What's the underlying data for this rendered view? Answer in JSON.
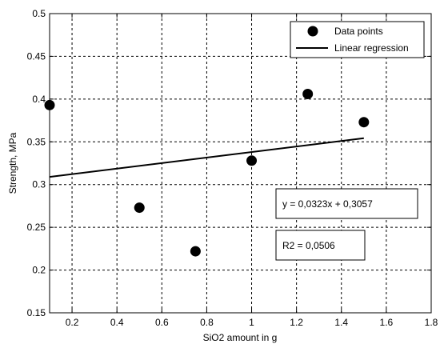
{
  "chart_data": {
    "type": "scatter",
    "xlabel": "SiO2 amount in g",
    "ylabel": "Strength, MPa",
    "xlim": [
      0.1,
      1.8
    ],
    "ylim": [
      0.15,
      0.5
    ],
    "xticks": [
      0.2,
      0.4,
      0.6,
      0.8,
      1,
      1.2,
      1.4,
      1.6,
      1.8
    ],
    "yticks": [
      0.15,
      0.2,
      0.25,
      0.3,
      0.35,
      0.4,
      0.45,
      0.5
    ],
    "xtick_labels": [
      "0.2",
      "0.4",
      "0.6",
      "0.8",
      "1",
      "1.2",
      "1.4",
      "1.6",
      "1.8"
    ],
    "ytick_labels": [
      "0.15",
      "0.2",
      "0.25",
      "0.3",
      "0.35",
      "0.4",
      "0.45",
      "0.5"
    ],
    "grid": true,
    "legend_position": "top-right",
    "series": [
      {
        "name": "Data points",
        "kind": "scatter",
        "color": "#000000",
        "x": [
          0.1,
          0.5,
          0.75,
          1.0,
          1.25,
          1.5
        ],
        "y": [
          0.393,
          0.273,
          0.222,
          0.328,
          0.406,
          0.373
        ]
      },
      {
        "name": "Linear regression",
        "kind": "line",
        "color": "#000000",
        "x": [
          0.1,
          1.5
        ],
        "y": [
          0.309,
          0.3542
        ]
      }
    ],
    "annotations": [
      "y = 0,0323x + 0,3057",
      "R2 = 0,0506"
    ]
  }
}
